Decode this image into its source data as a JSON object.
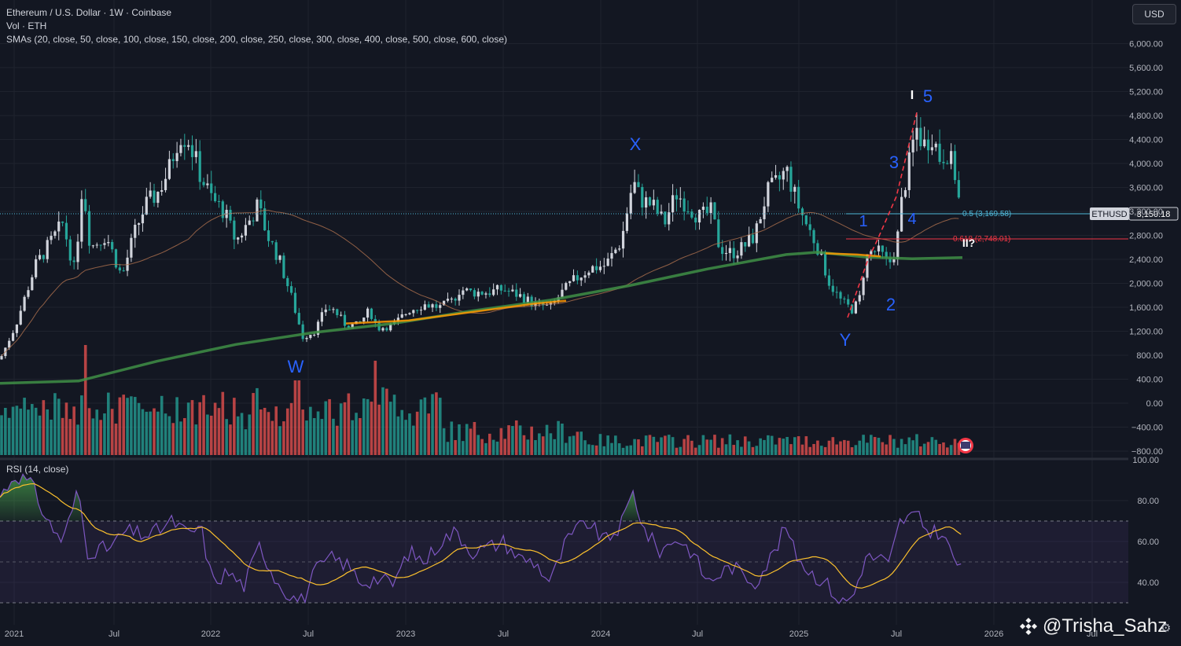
{
  "header": {
    "title": "Ethereum / U.S. Dollar · 1W · Coinbase",
    "volume": "Vol · ETH",
    "smas": "SMAs (20, close, 50, close, 100, close, 150, close, 200, close, 250, close, 300, close, 400, close, 500, close, 600, close)",
    "currency_button": "USD"
  },
  "rsi_label": "RSI (14, close)",
  "price_axis": [
    "6,000.00",
    "5,600.00",
    "5,200.00",
    "4,800.00",
    "4,400.00",
    "4,000.00",
    "3,600.00",
    "3,200.00",
    "2,800.00",
    "2,400.00",
    "2,000.00",
    "1,600.00",
    "1,200.00",
    "800.00",
    "400.00",
    "0.00",
    "−400.00",
    "−800.00"
  ],
  "rsi_axis": [
    "100.00",
    "80.00",
    "60.00",
    "40.00"
  ],
  "time_axis": [
    "2021",
    "Jul",
    "2022",
    "Jul",
    "2023",
    "Jul",
    "2024",
    "Jul",
    "2025",
    "Jul",
    "2026",
    "Jul"
  ],
  "current_price": {
    "symbol": "ETHUSD",
    "value": "3,150.18"
  },
  "fib_levels": [
    {
      "label": "0.5 (3,169.58)",
      "color": "#4fb8d8"
    },
    {
      "label": "0.618 (2,748.01)",
      "color": "#f23645"
    }
  ],
  "wave_labels": [
    "W",
    "X",
    "Y",
    "1",
    "2",
    "3",
    "4",
    "5",
    "I",
    "II?"
  ],
  "watermark": "@Trisha_Sahz",
  "colors": {
    "up": "#d1d4dc",
    "down": "#26a69a",
    "vol_up": "#26a69a",
    "vol_down": "#ef5350",
    "bg": "#131722",
    "sma_green": "#2e7d32",
    "sma_orange": "#ff9800",
    "rsi": "#7e57c2",
    "rsi_ma": "#fbc02d"
  }
}
